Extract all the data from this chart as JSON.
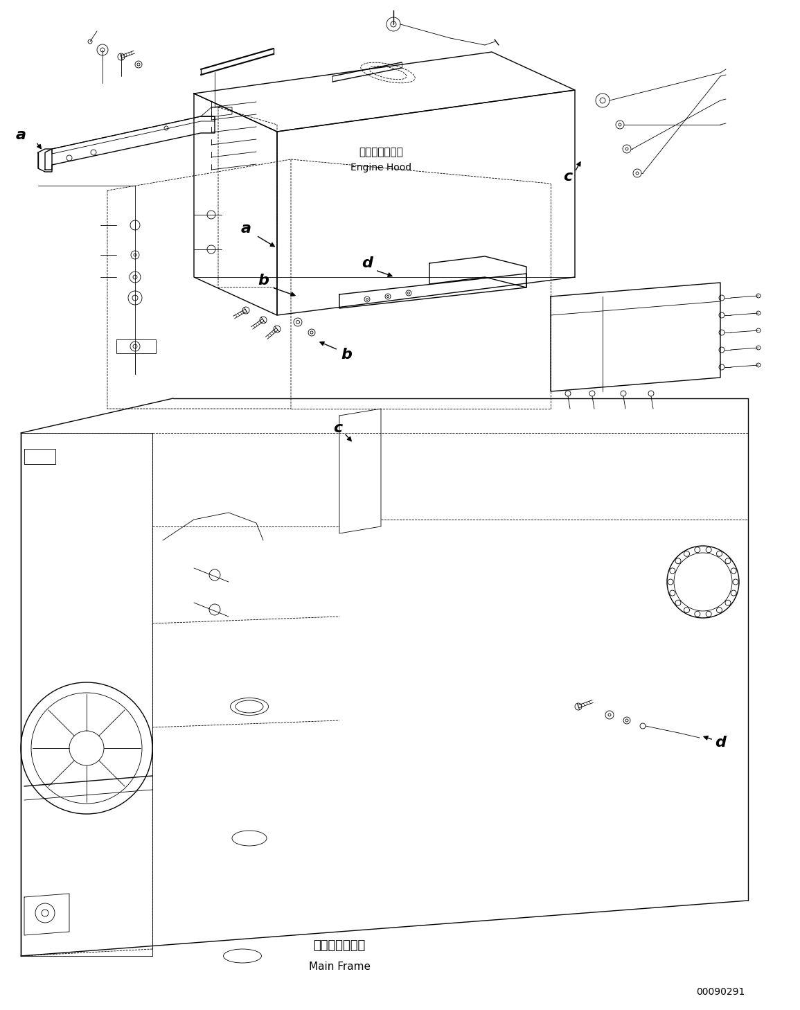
{
  "bg_color": "#ffffff",
  "line_color": "#000000",
  "figsize": [
    11.55,
    14.58
  ],
  "dpi": 100,
  "part_number": "00090291",
  "labels": {
    "engine_hood_jp": "エンジンフード",
    "engine_hood_en": "Engine Hood",
    "main_frame_jp": "メインフレーム",
    "main_frame_en": "Main Frame"
  }
}
